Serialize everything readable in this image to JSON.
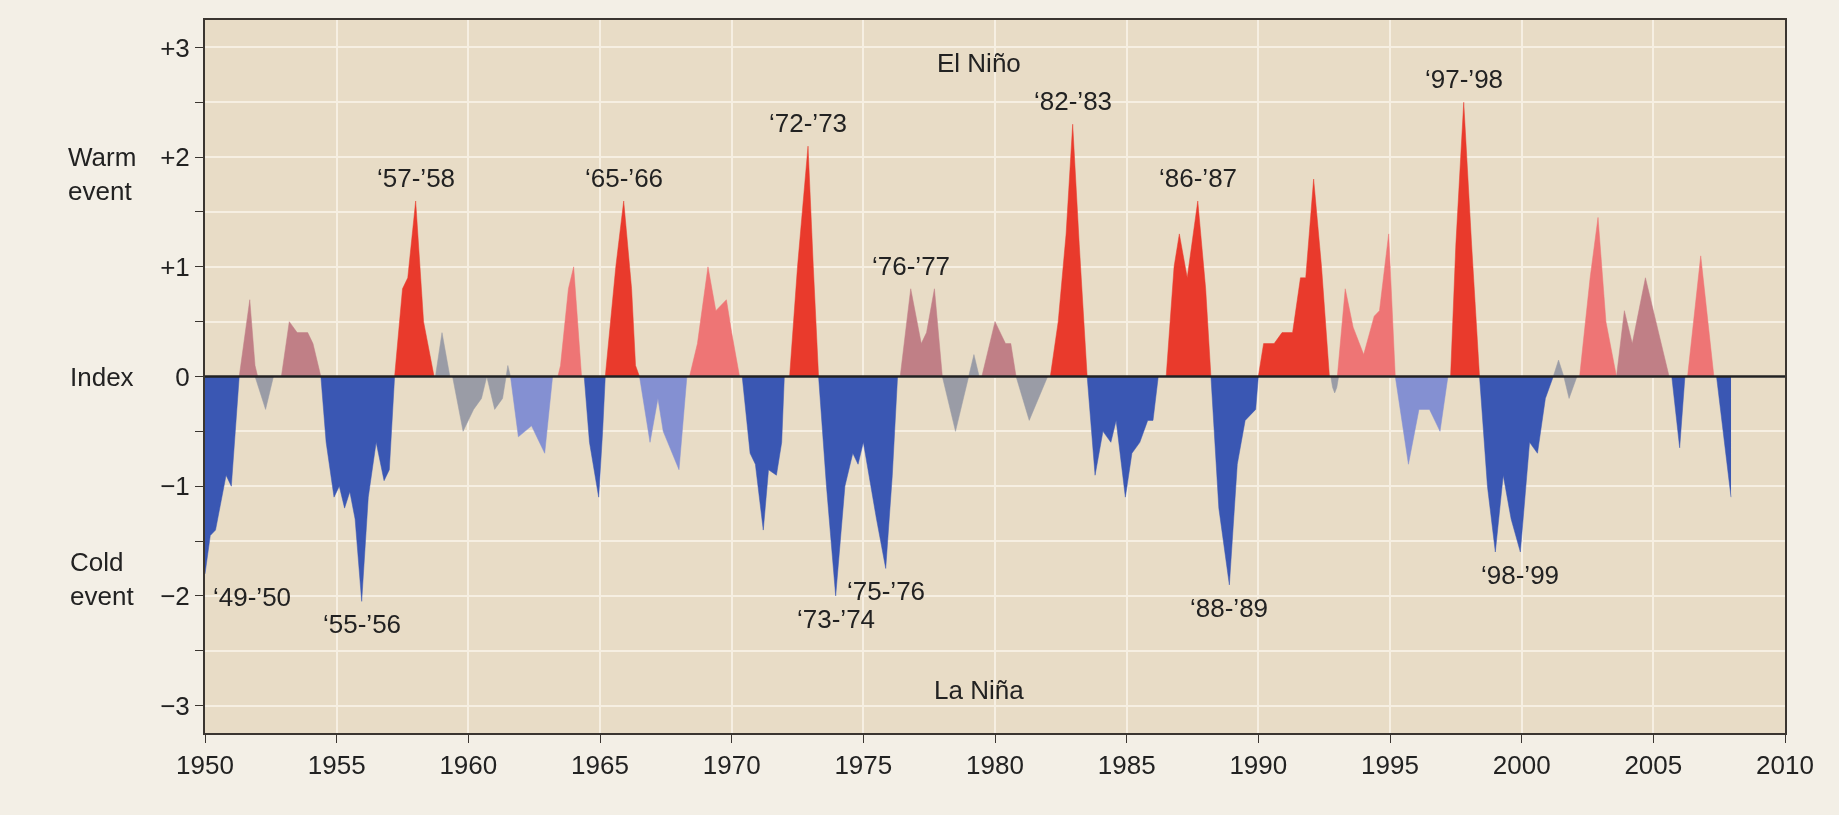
{
  "chart_data": {
    "type": "area",
    "ylabel": "Index",
    "xlim": [
      1950,
      2010
    ],
    "xticks": [
      1950,
      1955,
      1960,
      1965,
      1970,
      1975,
      1980,
      1985,
      1990,
      1995,
      2000,
      2005,
      2010
    ],
    "ylim": [
      -3.25,
      3.25
    ],
    "yticks": [
      {
        "value": 3,
        "label": "+3"
      },
      {
        "value": 2.5,
        "label": null
      },
      {
        "value": 2,
        "label": "+2"
      },
      {
        "value": 1.5,
        "label": null
      },
      {
        "value": 1,
        "label": "+1"
      },
      {
        "value": 0.5,
        "label": null
      },
      0,
      {
        "value": -0.5,
        "label": null
      },
      {
        "value": -1,
        "label": "−1"
      },
      {
        "value": -1.5,
        "label": null
      },
      {
        "value": -2,
        "label": "−2"
      },
      {
        "value": -2.5,
        "label": null
      },
      {
        "value": -3,
        "label": "−3"
      }
    ],
    "grid": true,
    "ref_lines": [
      {
        "axis": "y",
        "value": 0,
        "color": "#222222"
      }
    ],
    "series": [
      {
        "color": "#3a57b3",
        "x": [
          1950.0,
          1950.2,
          1950.4,
          1950.8,
          1951.0,
          1951.3,
          1951.35,
          1954.4,
          1954.6,
          1954.9,
          1955.1,
          1955.3,
          1955.5,
          1955.7,
          1955.95,
          1956.2,
          1956.5,
          1956.8,
          1957.0,
          1957.2,
          1957.25,
          1964.4,
          1964.6,
          1964.95,
          1965.1,
          1965.2,
          1965.25,
          1970.4,
          1970.7,
          1970.9,
          1971.2,
          1971.4,
          1971.7,
          1971.9,
          1972.0,
          1972.05,
          1973.3,
          1973.6,
          1973.95,
          1974.3,
          1974.6,
          1974.8,
          1975.0,
          1975.5,
          1975.85,
          1976.1,
          1976.3,
          1976.35,
          1983.5,
          1983.8,
          1984.1,
          1984.4,
          1984.6,
          1984.95,
          1985.2,
          1985.5,
          1985.8,
          1986.0,
          1986.2,
          1986.25,
          1988.2,
          1988.5,
          1988.9,
          1989.2,
          1989.5,
          1989.9,
          1990.0,
          1990.05,
          1998.4,
          1998.7,
          1999.0,
          1999.3,
          1999.6,
          1999.95,
          2000.3,
          2000.6,
          2000.9,
          2001.2,
          2001.25,
          2005.7,
          2006.0,
          2006.2,
          2006.25,
          2007.4,
          2007.95
        ],
        "values": [
          -1.8,
          -1.45,
          -1.4,
          -0.9,
          -1.0,
          0,
          null,
          0,
          -0.6,
          -1.1,
          -1.0,
          -1.2,
          -1.05,
          -1.3,
          -2.05,
          -1.1,
          -0.6,
          -0.95,
          -0.85,
          0,
          null,
          0,
          -0.6,
          -1.1,
          -0.5,
          0,
          null,
          0,
          -0.7,
          -0.8,
          -1.4,
          -0.85,
          -0.9,
          -0.6,
          0,
          null,
          0,
          -1.0,
          -2.0,
          -1.0,
          -0.7,
          -0.8,
          -0.6,
          -1.3,
          -1.75,
          -0.9,
          0,
          null,
          0,
          -0.9,
          -0.5,
          -0.6,
          -0.4,
          -1.1,
          -0.7,
          -0.6,
          -0.4,
          -0.4,
          0,
          null,
          0,
          -1.2,
          -1.9,
          -0.8,
          -0.4,
          -0.3,
          0,
          null,
          0,
          -1.0,
          -1.6,
          -0.9,
          -1.3,
          -1.6,
          -0.6,
          -0.7,
          -0.2,
          0,
          null,
          0,
          -0.65,
          0,
          null,
          0,
          -1.1
        ]
      },
      {
        "color": "#8490d2",
        "x": [
          1961.6,
          1961.9,
          1962.4,
          1962.9,
          1963.2,
          1963.25,
          1966.5,
          1966.9,
          1967.2,
          1967.4,
          1968.0,
          1968.3,
          1968.35,
          1995.2,
          1995.7,
          1996.1,
          1996.5,
          1996.9,
          1997.2
        ],
        "values": [
          0,
          -0.55,
          -0.45,
          -0.7,
          0,
          null,
          0,
          -0.6,
          -0.2,
          -0.5,
          -0.85,
          0,
          null,
          0,
          -0.8,
          -0.3,
          -0.3,
          -0.5,
          0
        ]
      },
      {
        "color": "#9a9ca6",
        "x": [
          1951.9,
          1952.3,
          1952.6,
          1952.65,
          1958.75,
          1959.0,
          1959.3,
          1959.35,
          1959.4,
          1959.8,
          1960.2,
          1960.5,
          1960.7,
          1961.0,
          1961.3,
          1961.5,
          1961.6,
          1961.65,
          1978.0,
          1978.5,
          1979.0,
          1979.2,
          1979.4,
          1979.45,
          1980.8,
          1981.3,
          1982.0,
          1982.05,
          1992.75,
          1992.82,
          1992.9,
          1992.98,
          1993.05,
          1993.1,
          2001.2,
          2001.4,
          2001.6,
          2001.8,
          2002.1
        ],
        "values": [
          0,
          -0.3,
          0,
          null,
          0,
          0.4,
          0,
          null,
          0,
          -0.5,
          -0.3,
          -0.2,
          0,
          -0.3,
          -0.2,
          0.1,
          0,
          null,
          0,
          -0.5,
          0,
          0.2,
          0,
          null,
          0,
          -0.4,
          0,
          null,
          0,
          -0.1,
          -0.15,
          -0.1,
          0,
          null,
          0,
          0.15,
          0,
          -0.2,
          0
        ]
      },
      {
        "color": "#ee7575",
        "x": [
          1963.4,
          1963.5,
          1963.8,
          1964.0,
          1964.3,
          1964.35,
          1968.4,
          1968.7,
          1969.1,
          1969.4,
          1969.8,
          1970.0,
          1970.3,
          1970.35,
          1993.0,
          1993.3,
          1993.6,
          1994.0,
          1994.4,
          1994.6,
          1994.95,
          1995.2,
          1995.25,
          2002.2,
          2002.6,
          2002.9,
          2003.2,
          2003.6,
          2003.65,
          2006.3,
          2006.8,
          2007.3
        ],
        "values": [
          0,
          0.1,
          0.8,
          1.0,
          0,
          null,
          0,
          0.3,
          1.0,
          0.6,
          0.7,
          0.4,
          0,
          null,
          0,
          0.8,
          0.45,
          0.2,
          0.55,
          0.6,
          1.3,
          0,
          null,
          0,
          0.9,
          1.45,
          0.5,
          0,
          null,
          0,
          1.1,
          0
        ]
      },
      {
        "color": "#c07f86",
        "x": [
          1951.3,
          1951.7,
          1951.9,
          1952.0,
          1952.05,
          1952.9,
          1953.2,
          1953.5,
          1953.9,
          1954.1,
          1954.4,
          1954.45,
          1976.4,
          1976.8,
          1977.2,
          1977.4,
          1977.7,
          1978.0,
          1978.05,
          1979.5,
          1980.0,
          1980.4,
          1980.6,
          1980.8,
          1980.85,
          2003.6,
          2003.9,
          2004.2,
          2004.7,
          2005.1,
          2005.6
        ],
        "values": [
          0,
          0.7,
          0.1,
          0,
          null,
          0,
          0.5,
          0.4,
          0.4,
          0.3,
          0,
          null,
          0,
          0.8,
          0.3,
          0.4,
          0.8,
          0,
          null,
          0,
          0.5,
          0.3,
          0.3,
          0,
          null,
          0,
          0.6,
          0.3,
          0.9,
          0.5,
          0
        ]
      },
      {
        "color": "#e93a2c",
        "x": [
          1957.2,
          1957.5,
          1957.7,
          1958.0,
          1958.3,
          1958.7,
          1958.75,
          1965.2,
          1965.6,
          1965.9,
          1966.2,
          1966.35,
          1966.5,
          1966.55,
          1972.2,
          1972.5,
          1972.9,
          1973.1,
          1973.3,
          1973.35,
          1982.1,
          1982.4,
          1982.7,
          1982.95,
          1983.2,
          1983.5,
          1983.55,
          1986.5,
          1986.8,
          1987.0,
          1987.3,
          1987.7,
          1988.0,
          1988.2,
          1988.25,
          1990.0,
          1990.2,
          1990.6,
          1990.9,
          1991.3,
          1991.6,
          1991.8,
          1992.1,
          1992.4,
          1992.7,
          1992.75,
          1997.3,
          1997.5,
          1997.8,
          1998.1,
          1998.4
        ],
        "values": [
          0,
          0.8,
          0.9,
          1.6,
          0.5,
          0,
          null,
          0,
          1.0,
          1.6,
          0.8,
          0.1,
          0,
          null,
          0,
          1.0,
          2.1,
          1.0,
          0,
          null,
          0,
          0.5,
          1.3,
          2.3,
          1.2,
          0,
          null,
          0,
          1.0,
          1.3,
          0.9,
          1.6,
          0.8,
          0,
          null,
          0,
          0.3,
          0.3,
          0.4,
          0.4,
          0.9,
          0.9,
          1.8,
          1.0,
          0,
          null,
          0,
          1.2,
          2.5,
          1.2,
          0
        ]
      }
    ],
    "annotations": [
      "El Niño",
      "La Niña",
      "Warm event",
      "Cold event",
      {
        "text": "‘49-’50",
        "x": 1950.0,
        "y": -1.8
      },
      {
        "text": "‘55-’56",
        "x": 1955.95,
        "y": -2.05
      },
      {
        "text": "‘57-’58",
        "x": 1958.0,
        "y": 1.6
      },
      {
        "text": "‘65-’66",
        "x": 1965.9,
        "y": 1.6
      },
      {
        "text": "‘72-’73",
        "x": 1972.9,
        "y": 2.1
      },
      {
        "text": "‘73-’74",
        "x": 1973.95,
        "y": -2.0
      },
      {
        "text": "‘75-’76",
        "x": 1975.85,
        "y": -1.75
      },
      {
        "text": "‘76-’77",
        "x": 1976.8,
        "y": 0.8
      },
      {
        "text": "‘82-’83",
        "x": 1982.95,
        "y": 2.3
      },
      {
        "text": "‘86-’87",
        "x": 1987.7,
        "y": 1.6
      },
      {
        "text": "‘88-’89",
        "x": 1988.9,
        "y": -1.9
      },
      {
        "text": "‘97-’98",
        "x": 1997.8,
        "y": 2.5
      },
      {
        "text": "‘98-’99",
        "x": 1999.95,
        "y": -1.6
      }
    ]
  }
}
